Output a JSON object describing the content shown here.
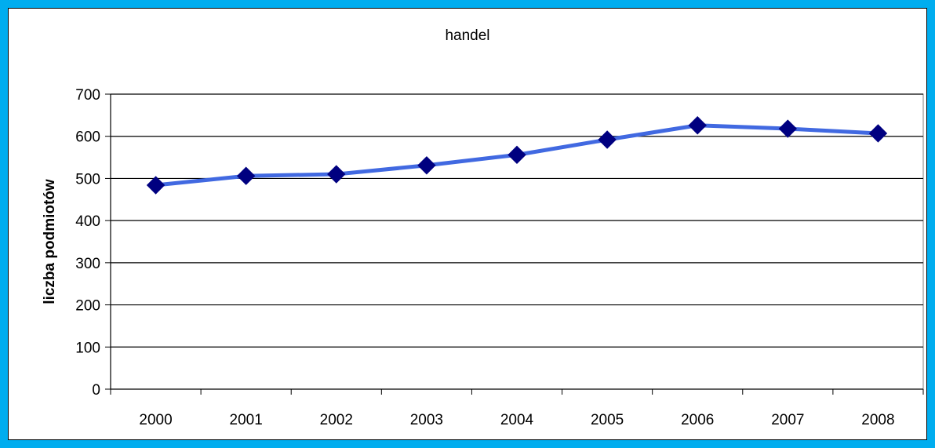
{
  "chart_data": {
    "type": "line",
    "title": "handel",
    "xlabel": "",
    "ylabel": "liczba podmiotów",
    "categories": [
      "2000",
      "2001",
      "2002",
      "2003",
      "2004",
      "2005",
      "2006",
      "2007",
      "2008"
    ],
    "series": [
      {
        "values": [
          484,
          506,
          510,
          531,
          556,
          592,
          626,
          618,
          607
        ]
      }
    ],
    "ylim": [
      0,
      700
    ],
    "yticks": [
      0,
      100,
      200,
      300,
      400,
      500,
      600,
      700
    ],
    "grid": "horizontal",
    "legend": "none",
    "colors": {
      "line": "#4169E1",
      "marker": "#000080",
      "frame": "#00ADEF"
    }
  }
}
